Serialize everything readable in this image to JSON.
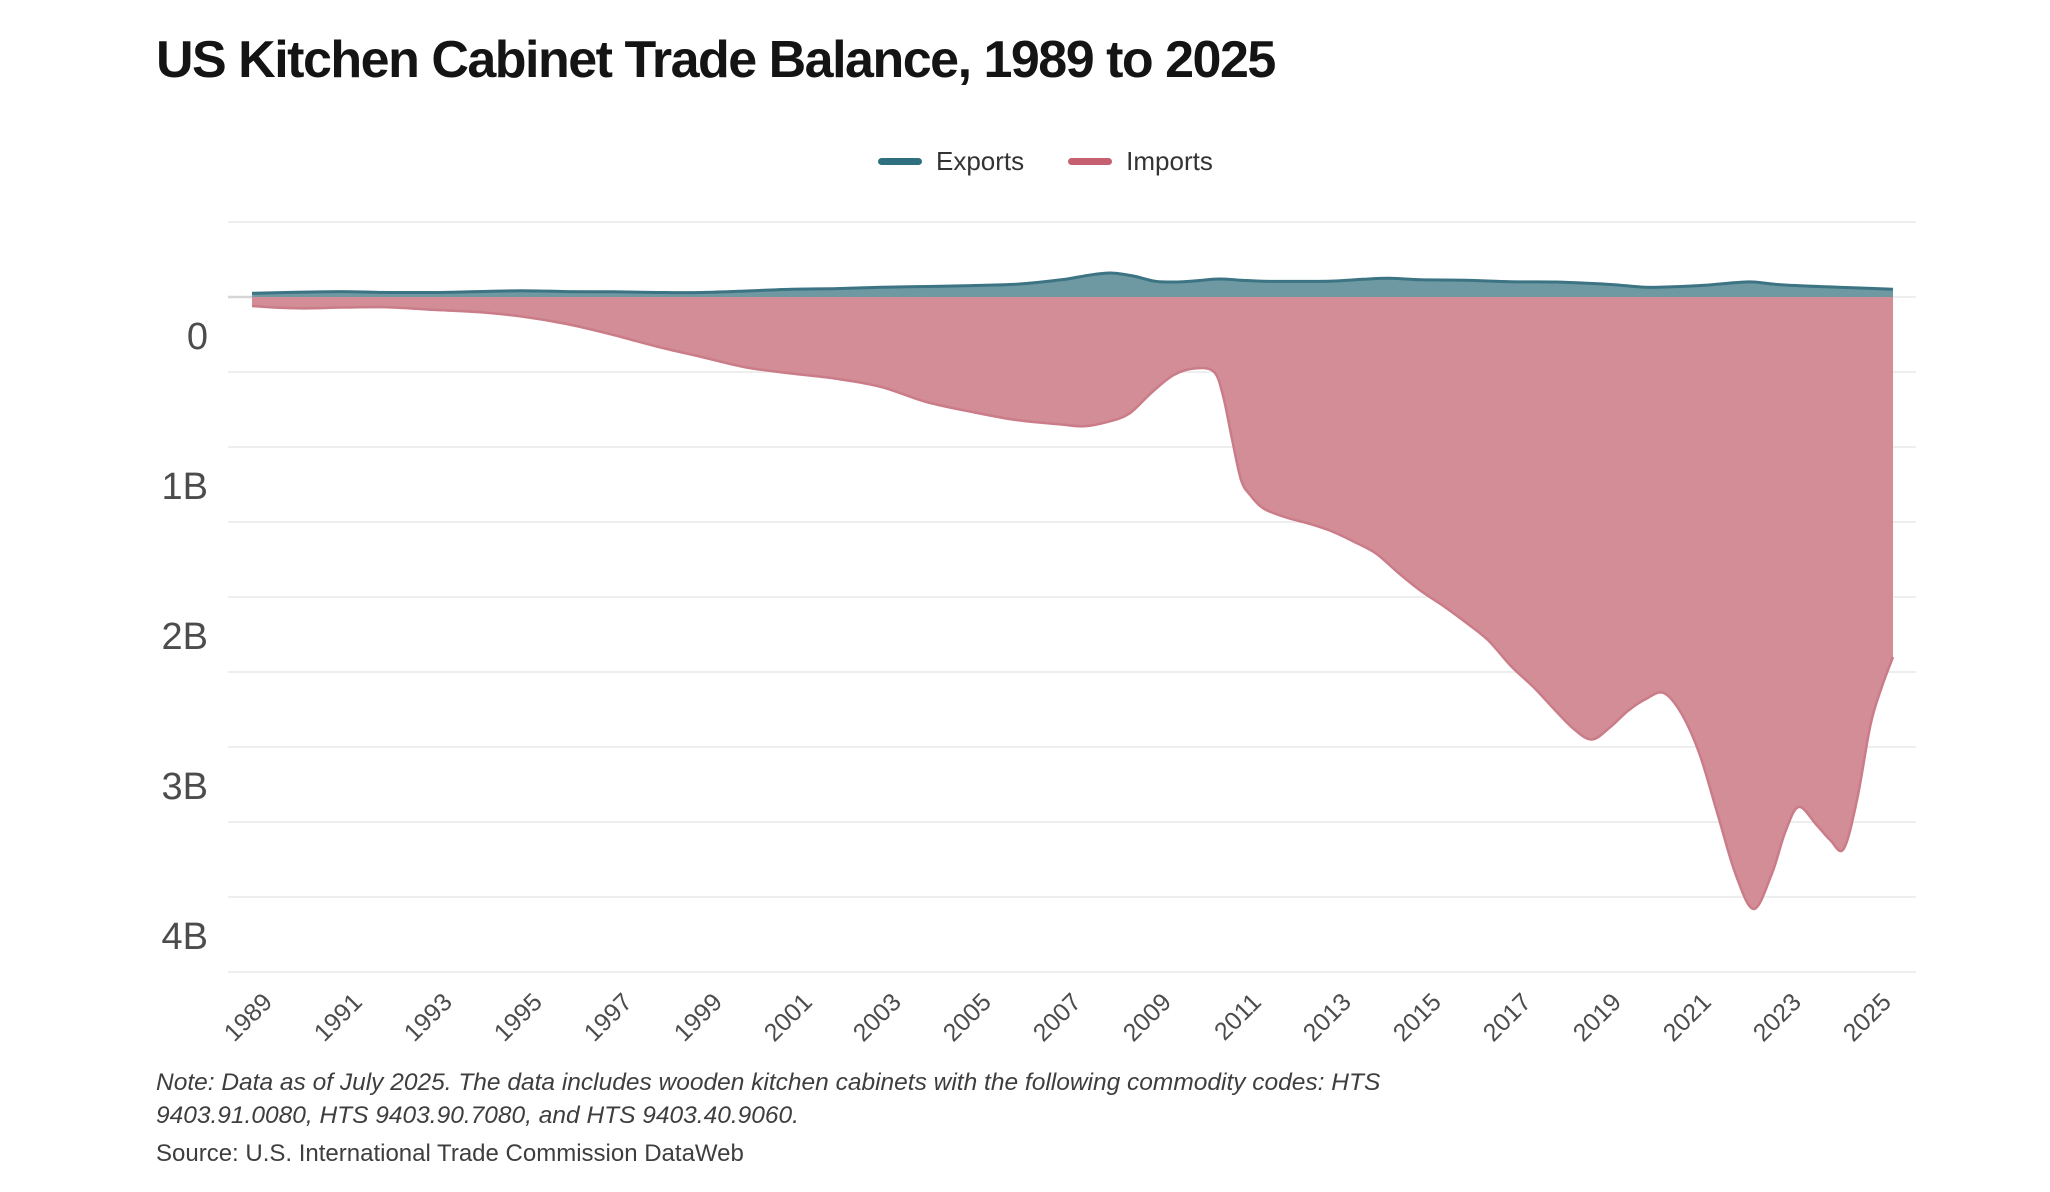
{
  "title": "US Kitchen Cabinet Trade Balance, 1989 to 2025",
  "legend": {
    "exports": {
      "label": "Exports",
      "color": "#2f6f7f"
    },
    "imports": {
      "label": "Imports",
      "color": "#c4606f"
    }
  },
  "note_line1": "Note: Data as of July 2025. The data includes wooden kitchen cabinets with the following commodity codes: HTS",
  "note_line2": "9403.91.0080, HTS 9403.90.7080, and HTS 9403.40.9060.",
  "source": "Source: U.S. International Trade Commission DataWeb",
  "chart_data": {
    "type": "area",
    "title": "US Kitchen Cabinet Trade Balance, 1989 to 2025",
    "units": "USD (billions)",
    "orientation_note": "Exports drawn upward from zero; Imports drawn downward from zero (trade deficit).",
    "x_axis": {
      "range": [
        1989,
        2025.5
      ],
      "tick_years": [
        1989,
        1991,
        1993,
        1995,
        1997,
        1999,
        2001,
        2003,
        2005,
        2007,
        2009,
        2011,
        2013,
        2015,
        2017,
        2019,
        2021,
        2023,
        2025
      ]
    },
    "y_axis": {
      "ticks": [
        {
          "label": "0",
          "value": 0
        },
        {
          "label": "1B",
          "value": 1
        },
        {
          "label": "2B",
          "value": 2
        },
        {
          "label": "3B",
          "value": 3
        },
        {
          "label": "4B",
          "value": 4
        }
      ],
      "gridline_step": 0.5,
      "grid_range": [
        -0.5,
        4.5
      ]
    },
    "series": [
      {
        "name": "Exports",
        "direction": "up",
        "line_color": "#3c7484",
        "fill_color": "#6e98a2",
        "points": [
          [
            1989,
            0.025
          ],
          [
            1990,
            0.032
          ],
          [
            1991,
            0.036
          ],
          [
            1992,
            0.03
          ],
          [
            1993,
            0.03
          ],
          [
            1994,
            0.036
          ],
          [
            1995,
            0.042
          ],
          [
            1996,
            0.036
          ],
          [
            1997,
            0.035
          ],
          [
            1998,
            0.03
          ],
          [
            1999,
            0.03
          ],
          [
            2000,
            0.04
          ],
          [
            2001,
            0.052
          ],
          [
            2002,
            0.056
          ],
          [
            2003,
            0.065
          ],
          [
            2004,
            0.07
          ],
          [
            2005,
            0.076
          ],
          [
            2006,
            0.085
          ],
          [
            2007,
            0.115
          ],
          [
            2007.6,
            0.145
          ],
          [
            2008.1,
            0.16
          ],
          [
            2008.6,
            0.14
          ],
          [
            2009.1,
            0.105
          ],
          [
            2009.6,
            0.1
          ],
          [
            2010,
            0.108
          ],
          [
            2010.5,
            0.12
          ],
          [
            2011,
            0.112
          ],
          [
            2011.5,
            0.105
          ],
          [
            2012,
            0.104
          ],
          [
            2013,
            0.106
          ],
          [
            2013.7,
            0.118
          ],
          [
            2014.3,
            0.125
          ],
          [
            2015,
            0.115
          ],
          [
            2016,
            0.112
          ],
          [
            2017,
            0.102
          ],
          [
            2018,
            0.1
          ],
          [
            2018.7,
            0.092
          ],
          [
            2019.3,
            0.082
          ],
          [
            2020,
            0.065
          ],
          [
            2020.6,
            0.068
          ],
          [
            2021.3,
            0.078
          ],
          [
            2022,
            0.096
          ],
          [
            2022.4,
            0.1
          ],
          [
            2023,
            0.082
          ],
          [
            2024,
            0.068
          ],
          [
            2024.6,
            0.062
          ],
          [
            2025.5,
            0.052
          ]
        ]
      },
      {
        "name": "Imports",
        "direction": "down",
        "line_color": "#ca7c88",
        "fill_color": "#d28d97",
        "points": [
          [
            1989,
            0.06
          ],
          [
            1989.5,
            0.07
          ],
          [
            1990,
            0.075
          ],
          [
            1990.5,
            0.074
          ],
          [
            1991,
            0.07
          ],
          [
            1992,
            0.068
          ],
          [
            1993,
            0.085
          ],
          [
            1994,
            0.1
          ],
          [
            1995,
            0.13
          ],
          [
            1996,
            0.18
          ],
          [
            1997,
            0.25
          ],
          [
            1998,
            0.33
          ],
          [
            1999,
            0.4
          ],
          [
            2000,
            0.47
          ],
          [
            2001,
            0.51
          ],
          [
            2002,
            0.545
          ],
          [
            2003,
            0.6
          ],
          [
            2004,
            0.7
          ],
          [
            2005,
            0.765
          ],
          [
            2006,
            0.82
          ],
          [
            2007,
            0.85
          ],
          [
            2007.5,
            0.862
          ],
          [
            2008,
            0.835
          ],
          [
            2008.5,
            0.78
          ],
          [
            2009,
            0.64
          ],
          [
            2009.5,
            0.52
          ],
          [
            2010,
            0.475
          ],
          [
            2010.4,
            0.5
          ],
          [
            2010.6,
            0.66
          ],
          [
            2010.8,
            0.95
          ],
          [
            2011,
            1.22
          ],
          [
            2011.2,
            1.32
          ],
          [
            2011.5,
            1.41
          ],
          [
            2012,
            1.47
          ],
          [
            2012.5,
            1.51
          ],
          [
            2013,
            1.56
          ],
          [
            2013.5,
            1.63
          ],
          [
            2014,
            1.71
          ],
          [
            2014.5,
            1.84
          ],
          [
            2015,
            1.96
          ],
          [
            2015.5,
            2.06
          ],
          [
            2016,
            2.17
          ],
          [
            2016.5,
            2.29
          ],
          [
            2017,
            2.46
          ],
          [
            2017.5,
            2.6
          ],
          [
            2018,
            2.76
          ],
          [
            2018.4,
            2.88
          ],
          [
            2018.8,
            2.95
          ],
          [
            2019.2,
            2.87
          ],
          [
            2019.6,
            2.76
          ],
          [
            2020,
            2.68
          ],
          [
            2020.4,
            2.64
          ],
          [
            2020.8,
            2.78
          ],
          [
            2021.2,
            3.05
          ],
          [
            2021.6,
            3.45
          ],
          [
            2022,
            3.85
          ],
          [
            2022.4,
            4.08
          ],
          [
            2022.8,
            3.85
          ],
          [
            2023.1,
            3.57
          ],
          [
            2023.4,
            3.4
          ],
          [
            2023.8,
            3.52
          ],
          [
            2024.1,
            3.62
          ],
          [
            2024.4,
            3.68
          ],
          [
            2024.7,
            3.35
          ],
          [
            2025,
            2.85
          ],
          [
            2025.25,
            2.6
          ],
          [
            2025.5,
            2.4
          ]
        ]
      }
    ],
    "layout_hints": {
      "grid": "horizontal only",
      "legend_position": "top-center",
      "x_labels_rotated_deg": -45
    }
  }
}
